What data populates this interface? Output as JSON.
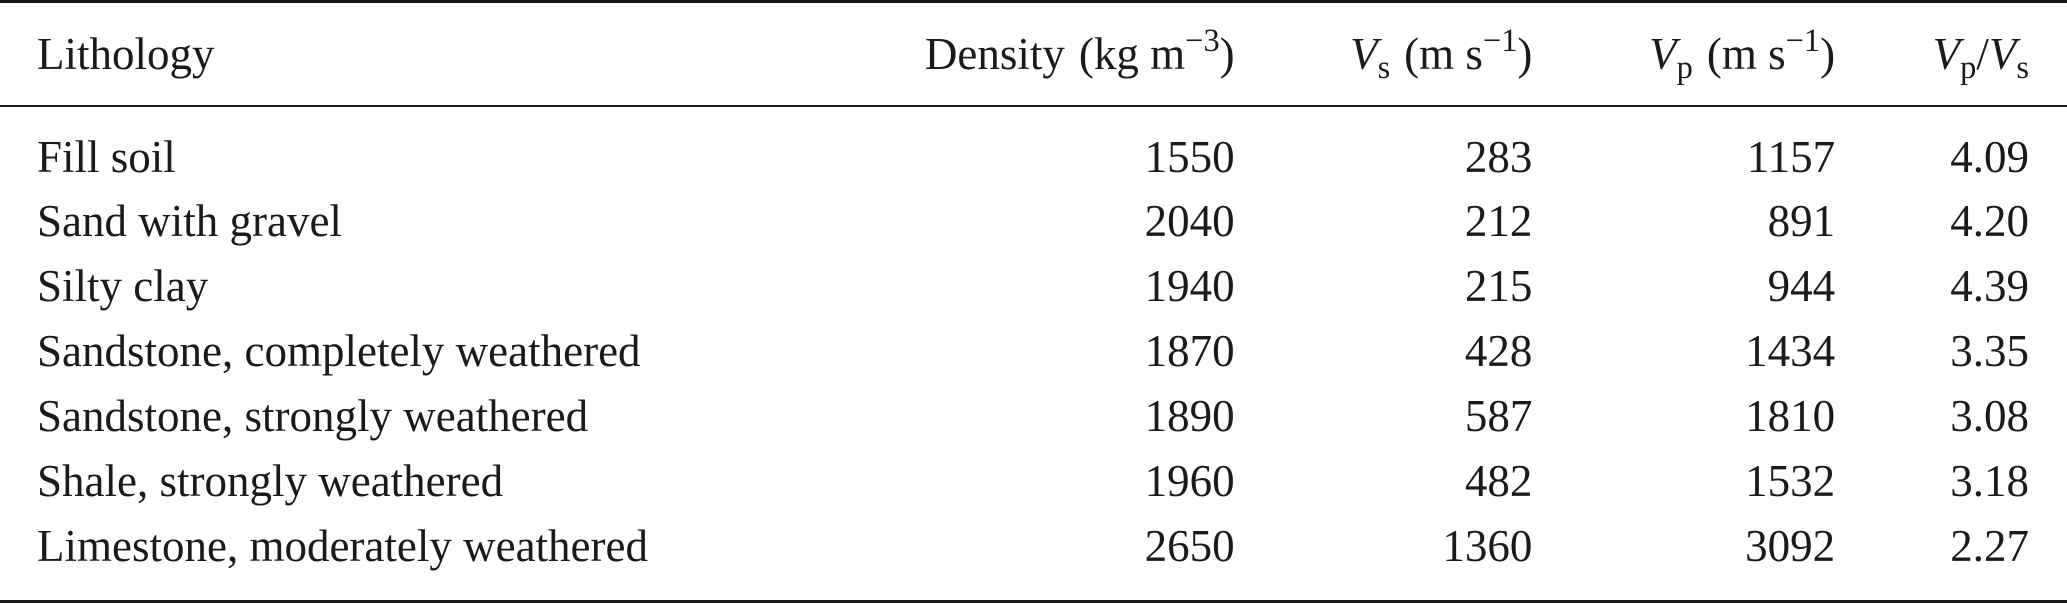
{
  "table": {
    "headers": {
      "lithology": "Lithology",
      "density": {
        "label": "Density",
        "unit_base": "kg m",
        "unit_exp": "−3"
      },
      "vs": {
        "symbol": "V",
        "sub": "s",
        "unit_base": "m s",
        "unit_exp": "−1"
      },
      "vp": {
        "symbol": "V",
        "sub": "p",
        "unit_base": "m s",
        "unit_exp": "−1"
      },
      "ratio": {
        "num_symbol": "V",
        "num_sub": "p",
        "slash": "/",
        "den_symbol": "V",
        "den_sub": "s"
      }
    },
    "rows": [
      {
        "lithology": "Fill soil",
        "density": "1550",
        "vs": "283",
        "vp": "1157",
        "ratio": "4.09"
      },
      {
        "lithology": "Sand with gravel",
        "density": "2040",
        "vs": "212",
        "vp": "891",
        "ratio": "4.20"
      },
      {
        "lithology": "Silty clay",
        "density": "1940",
        "vs": "215",
        "vp": "944",
        "ratio": "4.39"
      },
      {
        "lithology": "Sandstone, completely weathered",
        "density": "1870",
        "vs": "428",
        "vp": "1434",
        "ratio": "3.35"
      },
      {
        "lithology": "Sandstone, strongly weathered",
        "density": "1890",
        "vs": "587",
        "vp": "1810",
        "ratio": "3.08"
      },
      {
        "lithology": "Shale, strongly weathered",
        "density": "1960",
        "vs": "482",
        "vp": "1532",
        "ratio": "3.18"
      },
      {
        "lithology": "Limestone, moderately weathered",
        "density": "2650",
        "vs": "1360",
        "vp": "3092",
        "ratio": "2.27"
      }
    ]
  }
}
